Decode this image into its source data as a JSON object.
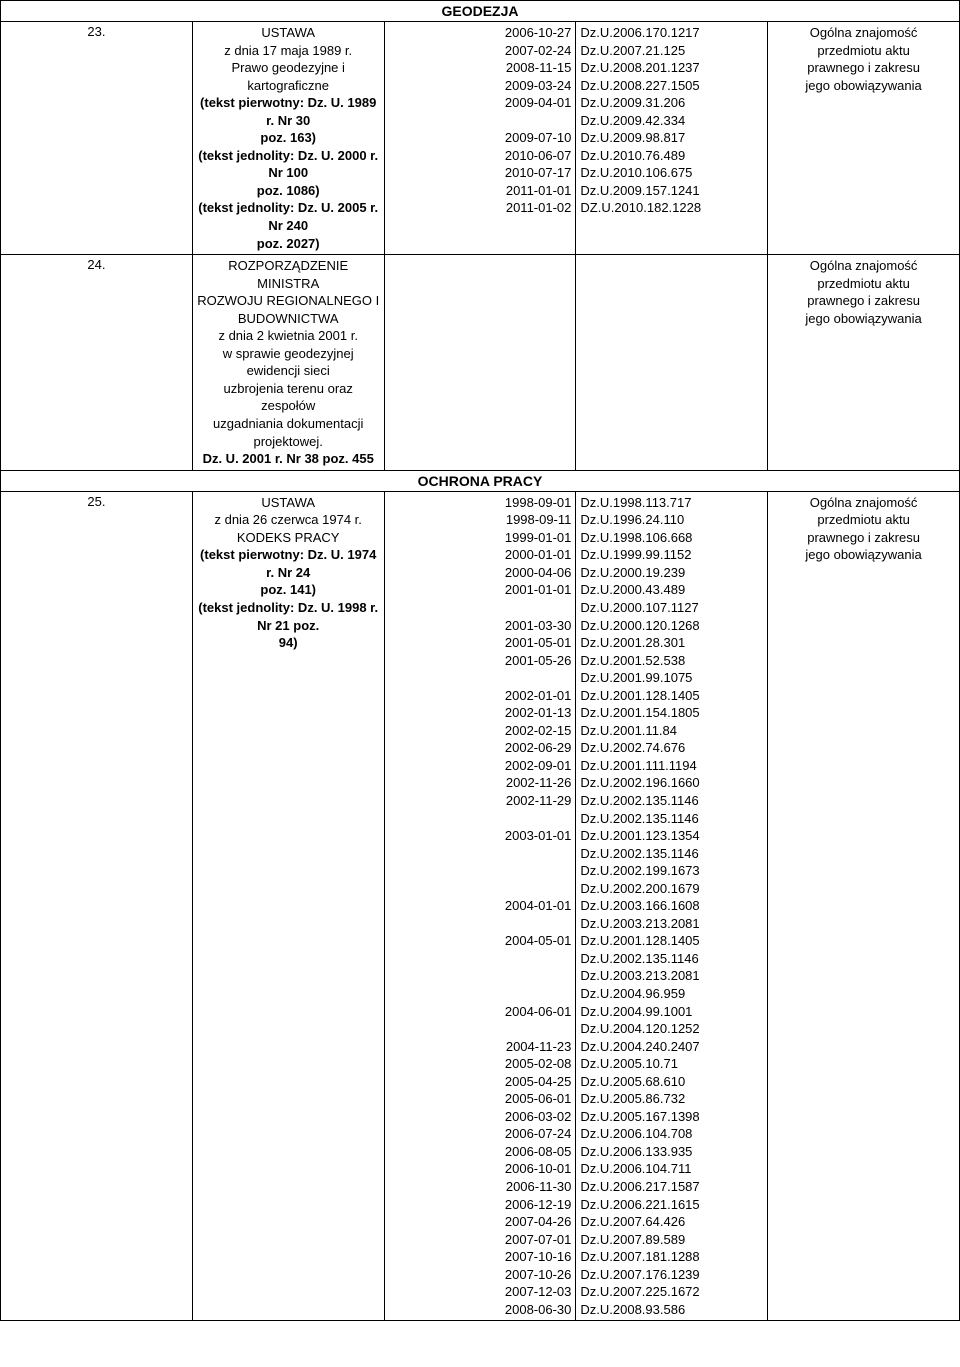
{
  "sections": {
    "geodezja": {
      "header": "GEODEZJA"
    },
    "ochrona": {
      "header": "OCHRONA PRACY"
    }
  },
  "rows": {
    "r23": {
      "num": "23.",
      "title_l1": "USTAWA",
      "title_l2": "z dnia 17 maja 1989 r.",
      "title_l3": "Prawo geodezyjne i kartograficzne",
      "title_l4": "(tekst pierwotny: Dz. U. 1989 r. Nr 30",
      "title_l5": "poz. 163)",
      "title_l6": "(tekst jednolity: Dz. U. 2000 r. Nr 100",
      "title_l7": "poz. 1086)",
      "title_l8": "(tekst jednolity: Dz. U. 2005 r. Nr 240",
      "title_l9": "poz. 2027)",
      "dates": "2006-10-27\n2007-02-24\n2008-11-15\n2009-03-24\n2009-04-01\n\n2009-07-10\n2010-06-07\n2010-07-17\n2011-01-01\n2011-01-02",
      "refs": "Dz.U.2006.170.1217\nDz.U.2007.21.125\nDz.U.2008.201.1237\nDz.U.2008.227.1505\nDz.U.2009.31.206\nDz.U.2009.42.334\nDz.U.2009.98.817\nDz.U.2010.76.489\nDz.U.2010.106.675\nDz.U.2009.157.1241\nDZ.U.2010.182.1228",
      "note_l1": "Ogólna znajomość",
      "note_l2": "przedmiotu aktu",
      "note_l3": "prawnego i zakresu",
      "note_l4": "jego obowiązywania"
    },
    "r24": {
      "num": "24.",
      "title_l1": "ROZPORZĄDZENIE MINISTRA",
      "title_l2": "ROZWOJU REGIONALNEGO I",
      "title_l3": "BUDOWNICTWA",
      "title_l4": "z dnia 2 kwietnia 2001 r.",
      "title_l5": "w sprawie geodezyjnej ewidencji sieci",
      "title_l6": "uzbrojenia terenu oraz zespołów",
      "title_l7": "uzgadniania dokumentacji projektowej.",
      "title_l8": "Dz. U. 2001 r. Nr 38 poz. 455",
      "note_l1": "Ogólna znajomość",
      "note_l2": "przedmiotu aktu",
      "note_l3": "prawnego i zakresu",
      "note_l4": "jego obowiązywania"
    },
    "r25": {
      "num": "25.",
      "title_l1": "USTAWA",
      "title_l2": "z dnia 26 czerwca 1974 r.",
      "title_l3": "KODEKS PRACY",
      "title_l4": "(tekst pierwotny: Dz. U. 1974 r. Nr 24",
      "title_l5": "poz. 141)",
      "title_l6": "(tekst jednolity: Dz. U. 1998 r. Nr 21 poz.",
      "title_l7": "94)",
      "dates": "1998-09-01\n1998-09-11\n1999-01-01\n2000-01-01\n2000-04-06\n2001-01-01\n\n2001-03-30\n2001-05-01\n2001-05-26\n\n2002-01-01\n2002-01-13\n2002-02-15\n2002-06-29\n2002-09-01\n2002-11-26\n2002-11-29\n\n2003-01-01\n\n\n\n2004-01-01\n\n2004-05-01\n\n\n\n2004-06-01\n\n2004-11-23\n2005-02-08\n2005-04-25\n2005-06-01\n2006-03-02\n2006-07-24\n2006-08-05\n2006-10-01\n2006-11-30\n2006-12-19\n2007-04-26\n2007-07-01\n2007-10-16\n2007-10-26\n2007-12-03\n2008-06-30",
      "refs": "Dz.U.1998.113.717\nDz.U.1996.24.110\nDz.U.1998.106.668\nDz.U.1999.99.1152\nDz.U.2000.19.239\nDz.U.2000.43.489\nDz.U.2000.107.1127\nDz.U.2000.120.1268\nDz.U.2001.28.301\nDz.U.2001.52.538\nDz.U.2001.99.1075\nDz.U.2001.128.1405\nDz.U.2001.154.1805\nDz.U.2001.11.84\nDz.U.2002.74.676\nDz.U.2001.111.1194\nDz.U.2002.196.1660\nDz.U.2002.135.1146\nDz.U.2002.135.1146\nDz.U.2001.123.1354\nDz.U.2002.135.1146\nDz.U.2002.199.1673\nDz.U.2002.200.1679\nDz.U.2003.166.1608\nDz.U.2003.213.2081\nDz.U.2001.128.1405\nDz.U.2002.135.1146\nDz.U.2003.213.2081\nDz.U.2004.96.959\nDz.U.2004.99.1001\nDz.U.2004.120.1252\nDz.U.2004.240.2407\nDz.U.2005.10.71\nDz.U.2005.68.610\nDz.U.2005.86.732\nDz.U.2005.167.1398\nDz.U.2006.104.708\nDz.U.2006.133.935\nDz.U.2006.104.711\nDz.U.2006.217.1587\nDz.U.2006.221.1615\nDz.U.2007.64.426\nDz.U.2007.89.589\nDz.U.2007.181.1288\nDz.U.2007.176.1239\nDz.U.2007.225.1672\nDz.U.2008.93.586",
      "note_l1": "Ogólna znajomość",
      "note_l2": "przedmiotu aktu",
      "note_l3": "prawnego i zakresu",
      "note_l4": "jego obowiązywania"
    }
  }
}
